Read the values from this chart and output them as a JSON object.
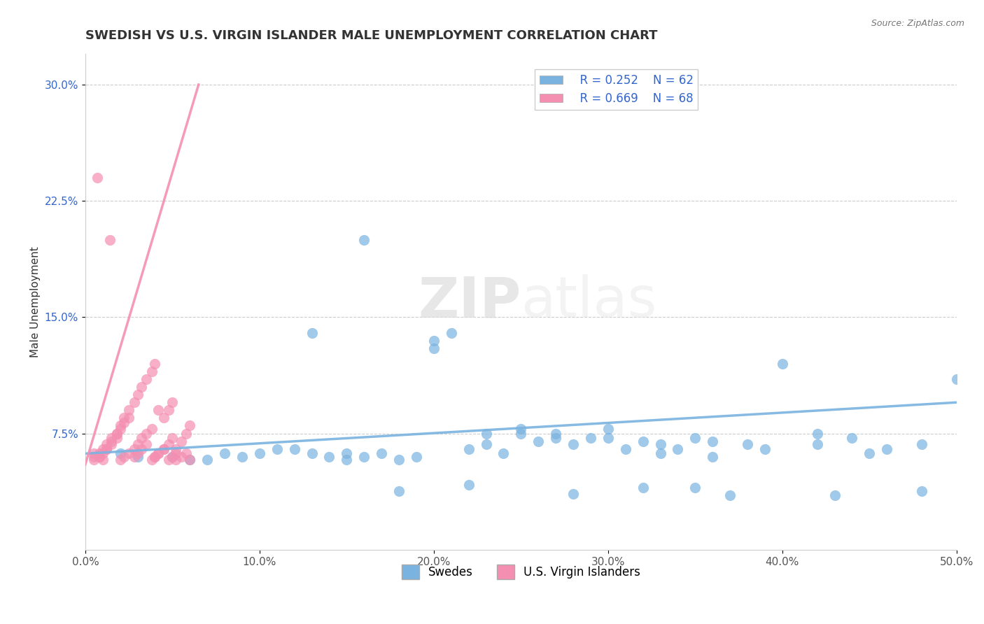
{
  "title": "SWEDISH VS U.S. VIRGIN ISLANDER MALE UNEMPLOYMENT CORRELATION CHART",
  "source": "Source: ZipAtlas.com",
  "xlabel": "",
  "ylabel": "Male Unemployment",
  "xlim": [
    0.0,
    0.5
  ],
  "ylim": [
    0.0,
    0.32
  ],
  "xticks": [
    0.0,
    0.1,
    0.2,
    0.3,
    0.4,
    0.5
  ],
  "xticklabels": [
    "0.0%",
    "10.0%",
    "20.0%",
    "30.0%",
    "40.0%",
    "50.0%"
  ],
  "yticks": [
    0.075,
    0.15,
    0.225,
    0.3
  ],
  "yticklabels": [
    "7.5%",
    "15.0%",
    "22.5%",
    "30.0%"
  ],
  "grid_color": "#cccccc",
  "background_color": "#ffffff",
  "series": [
    {
      "name": "Swedes",
      "R": 0.252,
      "N": 62,
      "color": "#7ab3e0",
      "scatter_x": [
        0.02,
        0.05,
        0.07,
        0.1,
        0.12,
        0.13,
        0.14,
        0.15,
        0.16,
        0.17,
        0.18,
        0.19,
        0.2,
        0.21,
        0.22,
        0.23,
        0.24,
        0.25,
        0.26,
        0.27,
        0.28,
        0.29,
        0.3,
        0.31,
        0.32,
        0.33,
        0.34,
        0.35,
        0.36,
        0.38,
        0.4,
        0.42,
        0.44,
        0.46,
        0.48,
        0.5,
        0.03,
        0.08,
        0.11,
        0.06,
        0.09,
        0.13,
        0.16,
        0.2,
        0.23,
        0.27,
        0.3,
        0.33,
        0.36,
        0.39,
        0.42,
        0.45,
        0.15,
        0.25,
        0.35,
        0.22,
        0.18,
        0.28,
        0.32,
        0.37,
        0.43,
        0.48
      ],
      "scatter_y": [
        0.062,
        0.06,
        0.058,
        0.062,
        0.065,
        0.062,
        0.06,
        0.058,
        0.06,
        0.062,
        0.058,
        0.06,
        0.13,
        0.14,
        0.065,
        0.068,
        0.062,
        0.075,
        0.07,
        0.072,
        0.068,
        0.072,
        0.078,
        0.065,
        0.07,
        0.068,
        0.065,
        0.072,
        0.07,
        0.068,
        0.12,
        0.075,
        0.072,
        0.065,
        0.068,
        0.11,
        0.06,
        0.062,
        0.065,
        0.058,
        0.06,
        0.14,
        0.2,
        0.135,
        0.075,
        0.075,
        0.072,
        0.062,
        0.06,
        0.065,
        0.068,
        0.062,
        0.062,
        0.078,
        0.04,
        0.042,
        0.038,
        0.036,
        0.04,
        0.035,
        0.035,
        0.038
      ],
      "trend_x": [
        0.0,
        0.5
      ],
      "trend_y": [
        0.062,
        0.095
      ]
    },
    {
      "name": "U.S. Virgin Islanders",
      "R": 0.669,
      "N": 68,
      "color": "#f48fb1",
      "scatter_x": [
        0.005,
        0.008,
        0.01,
        0.012,
        0.015,
        0.018,
        0.02,
        0.022,
        0.025,
        0.028,
        0.03,
        0.032,
        0.035,
        0.038,
        0.04,
        0.042,
        0.045,
        0.048,
        0.05,
        0.052,
        0.055,
        0.058,
        0.06,
        0.005,
        0.008,
        0.01,
        0.012,
        0.015,
        0.018,
        0.02,
        0.022,
        0.025,
        0.028,
        0.03,
        0.032,
        0.035,
        0.038,
        0.04,
        0.042,
        0.045,
        0.048,
        0.05,
        0.052,
        0.005,
        0.008,
        0.01,
        0.012,
        0.015,
        0.018,
        0.02,
        0.022,
        0.025,
        0.028,
        0.03,
        0.032,
        0.035,
        0.038,
        0.04,
        0.042,
        0.045,
        0.048,
        0.05,
        0.052,
        0.055,
        0.058,
        0.06,
        0.007,
        0.014
      ],
      "scatter_y": [
        0.062,
        0.06,
        0.058,
        0.065,
        0.07,
        0.075,
        0.08,
        0.085,
        0.09,
        0.095,
        0.1,
        0.105,
        0.11,
        0.115,
        0.12,
        0.09,
        0.085,
        0.09,
        0.095,
        0.065,
        0.07,
        0.075,
        0.08,
        0.06,
        0.062,
        0.065,
        0.068,
        0.072,
        0.075,
        0.078,
        0.082,
        0.085,
        0.06,
        0.062,
        0.065,
        0.068,
        0.058,
        0.06,
        0.062,
        0.065,
        0.058,
        0.06,
        0.062,
        0.058,
        0.06,
        0.062,
        0.065,
        0.068,
        0.072,
        0.058,
        0.06,
        0.062,
        0.065,
        0.068,
        0.072,
        0.075,
        0.078,
        0.06,
        0.062,
        0.065,
        0.068,
        0.072,
        0.058,
        0.06,
        0.062,
        0.058,
        0.24,
        0.2
      ],
      "trend_x": [
        0.0,
        0.065
      ],
      "trend_y": [
        0.055,
        0.3
      ]
    }
  ],
  "watermark_zip": "ZIP",
  "watermark_atlas": "atlas",
  "title_fontsize": 13,
  "axis_label_fontsize": 11,
  "tick_fontsize": 11,
  "legend_fontsize": 12
}
